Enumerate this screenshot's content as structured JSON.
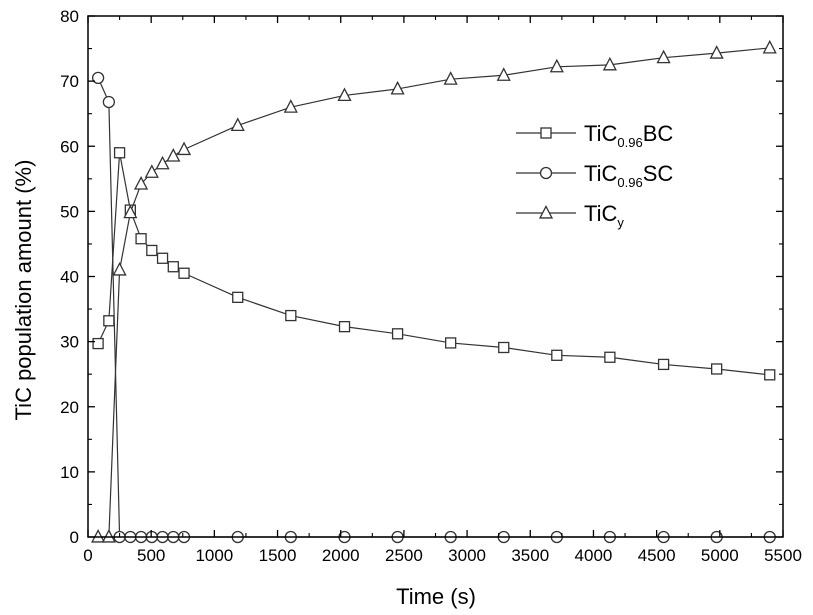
{
  "chart_data": {
    "type": "line",
    "xlabel": "Time (s)",
    "ylabel": "TiC population amount (%)",
    "xlim": [
      0,
      5500
    ],
    "ylim": [
      0,
      80
    ],
    "x_ticks": [
      "0",
      "500",
      "1000",
      "1500",
      "2000",
      "2500",
      "3000",
      "3500",
      "4000",
      "4500",
      "5000",
      "5500"
    ],
    "y_ticks": [
      "0",
      "10",
      "20",
      "30",
      "40",
      "50",
      "60",
      "70",
      "80"
    ],
    "grid": false,
    "legend_position": "upper-right",
    "line_color": "#333333",
    "series": [
      {
        "name_main": "TiC",
        "name_sub": "0.96",
        "name_tail": "BC",
        "marker": "square",
        "points": [
          [
            80,
            29.7
          ],
          [
            165,
            33.2
          ],
          [
            250,
            59.0
          ],
          [
            335,
            50.2
          ],
          [
            420,
            45.8
          ],
          [
            505,
            44.0
          ],
          [
            590,
            42.8
          ],
          [
            675,
            41.5
          ],
          [
            760,
            40.5
          ],
          [
            1185,
            36.8
          ],
          [
            1605,
            34.0
          ],
          [
            2030,
            32.3
          ],
          [
            2450,
            31.2
          ],
          [
            2870,
            29.8
          ],
          [
            3290,
            29.1
          ],
          [
            3710,
            27.9
          ],
          [
            4130,
            27.6
          ],
          [
            4555,
            26.5
          ],
          [
            4975,
            25.8
          ],
          [
            5395,
            24.9
          ]
        ]
      },
      {
        "name_main": "TiC",
        "name_sub": "0.96",
        "name_tail": "SC",
        "marker": "circle",
        "points": [
          [
            80,
            70.5
          ],
          [
            165,
            66.8
          ],
          [
            250,
            0.0
          ],
          [
            335,
            0.0
          ],
          [
            420,
            0.0
          ],
          [
            505,
            0.0
          ],
          [
            590,
            0.0
          ],
          [
            675,
            0.0
          ],
          [
            760,
            0.0
          ],
          [
            1185,
            0.0
          ],
          [
            1605,
            0.0
          ],
          [
            2030,
            0.0
          ],
          [
            2450,
            0.0
          ],
          [
            2870,
            0.0
          ],
          [
            3290,
            0.0
          ],
          [
            3710,
            0.0
          ],
          [
            4130,
            0.0
          ],
          [
            4555,
            0.0
          ],
          [
            4975,
            0.0
          ],
          [
            5395,
            0.0
          ]
        ]
      },
      {
        "name_main": "TiC",
        "name_sub": "y",
        "name_tail": "",
        "marker": "triangle",
        "points": [
          [
            80,
            0.0
          ],
          [
            165,
            0.0
          ],
          [
            250,
            41.0
          ],
          [
            335,
            49.8
          ],
          [
            420,
            54.2
          ],
          [
            505,
            56.0
          ],
          [
            590,
            57.3
          ],
          [
            675,
            58.5
          ],
          [
            760,
            59.5
          ],
          [
            1185,
            63.2
          ],
          [
            1605,
            66.0
          ],
          [
            2030,
            67.8
          ],
          [
            2450,
            68.8
          ],
          [
            2870,
            70.3
          ],
          [
            3290,
            70.9
          ],
          [
            3710,
            72.2
          ],
          [
            4130,
            72.5
          ],
          [
            4555,
            73.6
          ],
          [
            4975,
            74.3
          ],
          [
            5395,
            75.1
          ]
        ]
      }
    ]
  }
}
